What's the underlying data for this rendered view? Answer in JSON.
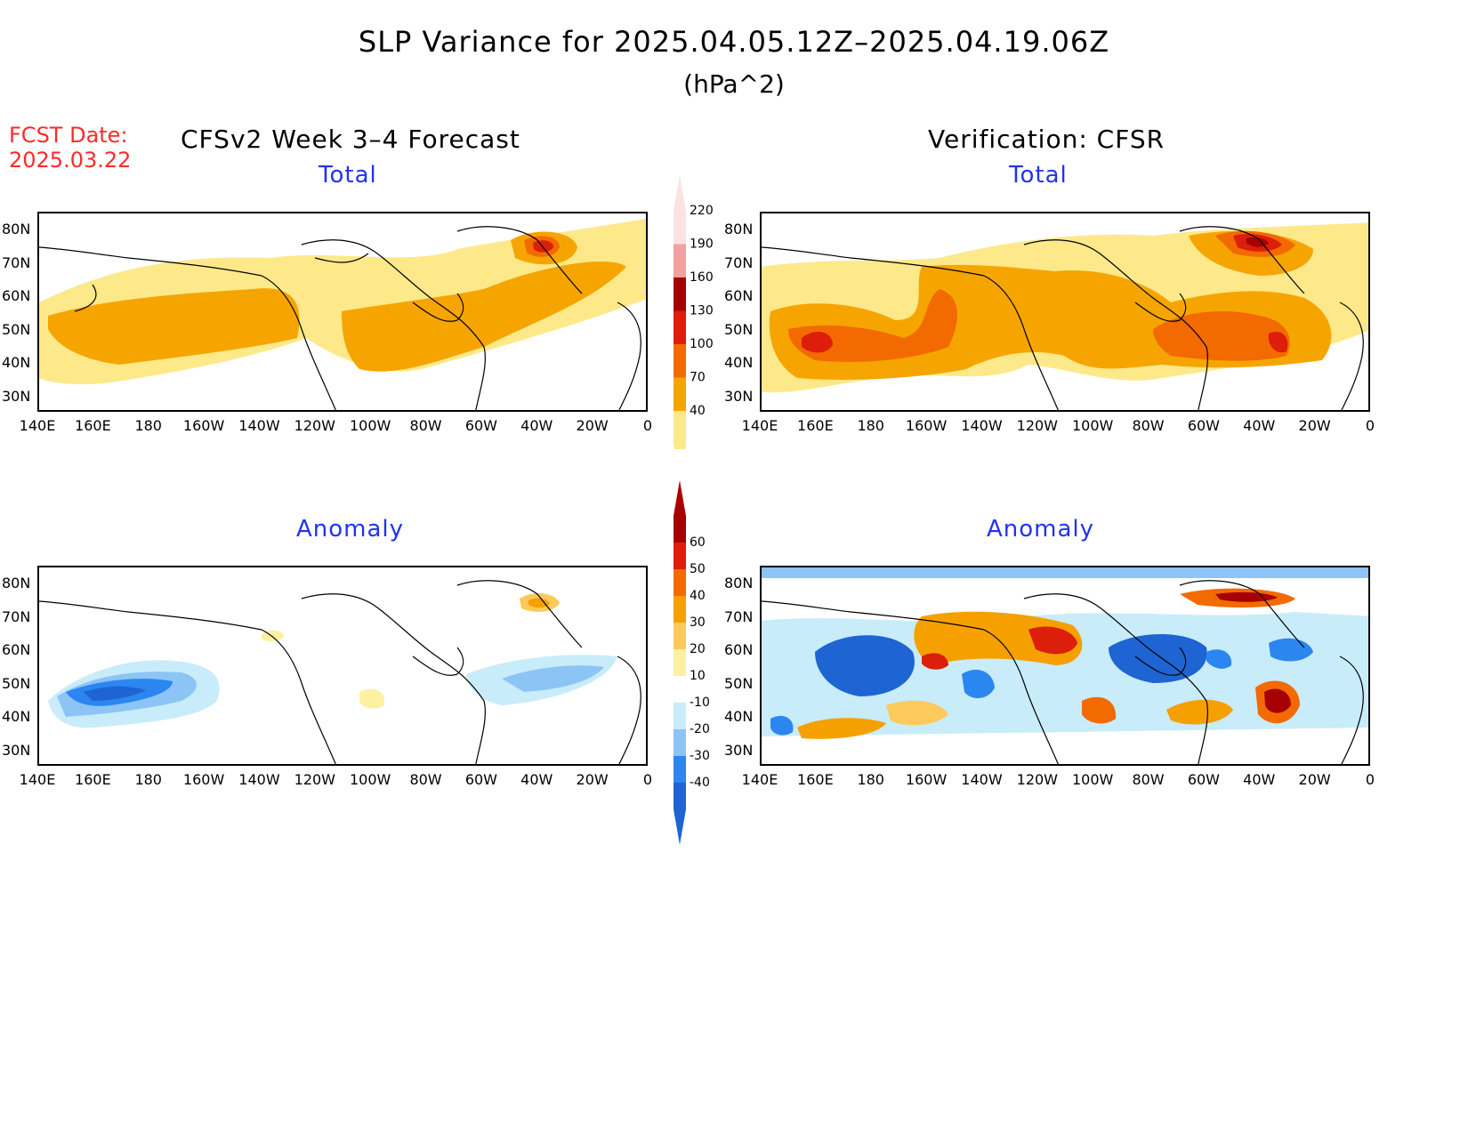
{
  "title": "SLP Variance for 2025.04.05.12Z–2025.04.19.06Z",
  "units": "(hPa^2)",
  "fcst_label": "FCST Date:",
  "fcst_date": "2025.03.22",
  "left_header": "CFSv2 Week 3–4 Forecast",
  "right_header": "Verification: CFSR",
  "panels": {
    "tl": {
      "title": "Total"
    },
    "tr": {
      "title": "Total"
    },
    "bl": {
      "title": "Anomaly"
    },
    "br": {
      "title": "Anomaly"
    }
  },
  "lat_labels": [
    "80N",
    "70N",
    "60N",
    "50N",
    "40N",
    "30N"
  ],
  "lon_labels": [
    "140E",
    "160E",
    "180",
    "160W",
    "140W",
    "120W",
    "100W",
    "80W",
    "60W",
    "40W",
    "20W",
    "0"
  ],
  "total_colorbar": {
    "levels": [
      "40",
      "70",
      "100",
      "130",
      "160",
      "190",
      "220"
    ],
    "colors": [
      "#fde98a",
      "#f6a500",
      "#f26a00",
      "#dc1e0a",
      "#a60000",
      "#f2a0a0",
      "#fde2e2"
    ]
  },
  "anomaly_colorbar": {
    "levels": [
      "-40",
      "-30",
      "-20",
      "-10",
      "10",
      "20",
      "30",
      "40",
      "50",
      "60"
    ],
    "colors": [
      "#1e64d2",
      "#2b86f0",
      "#8cc4f5",
      "#c8ecfa",
      "#ffffff",
      "#fdf1a0",
      "#fbca5a",
      "#f6a000",
      "#f26a00",
      "#dc1e0a",
      "#a60000"
    ]
  }
}
